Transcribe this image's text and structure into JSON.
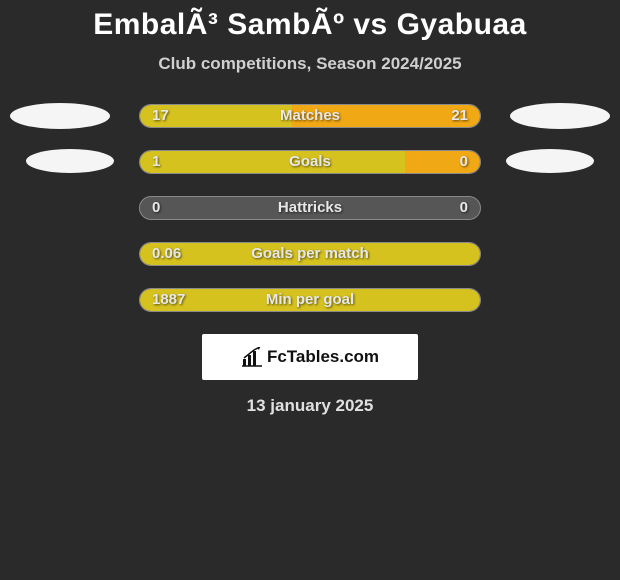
{
  "title": "EmbalÃ³ SambÃº vs Gyabuaa",
  "subtitle": "Club competitions, Season 2024/2025",
  "date": "13 january 2025",
  "brand": "FcTables.com",
  "colors": {
    "background": "#2a2a2a",
    "title": "#ffffff",
    "subtitle": "#d0d0d0",
    "track_bg": "#565656",
    "track_border": "#8a8a8a",
    "left_fill": "#d6c21f",
    "right_fill": "#f0a814",
    "text": "#e8e8e8",
    "ellipse": "#f5f5f5",
    "badge_bg": "#ffffff"
  },
  "stats": [
    {
      "label": "Matches",
      "left_value": "17",
      "right_value": "21",
      "left_pct": 44.7,
      "right_pct": 55.3,
      "show_ellipses": true,
      "ellipse_size": "large"
    },
    {
      "label": "Goals",
      "left_value": "1",
      "right_value": "0",
      "left_pct": 78,
      "right_pct": 22,
      "show_ellipses": true,
      "ellipse_size": "small"
    },
    {
      "label": "Hattricks",
      "left_value": "0",
      "right_value": "0",
      "left_pct": 0,
      "right_pct": 0,
      "show_ellipses": false
    },
    {
      "label": "Goals per match",
      "left_value": "0.06",
      "right_value": "",
      "left_pct": 100,
      "right_pct": 0,
      "show_ellipses": false
    },
    {
      "label": "Min per goal",
      "left_value": "1887",
      "right_value": "",
      "left_pct": 100,
      "right_pct": 0,
      "show_ellipses": false
    }
  ]
}
